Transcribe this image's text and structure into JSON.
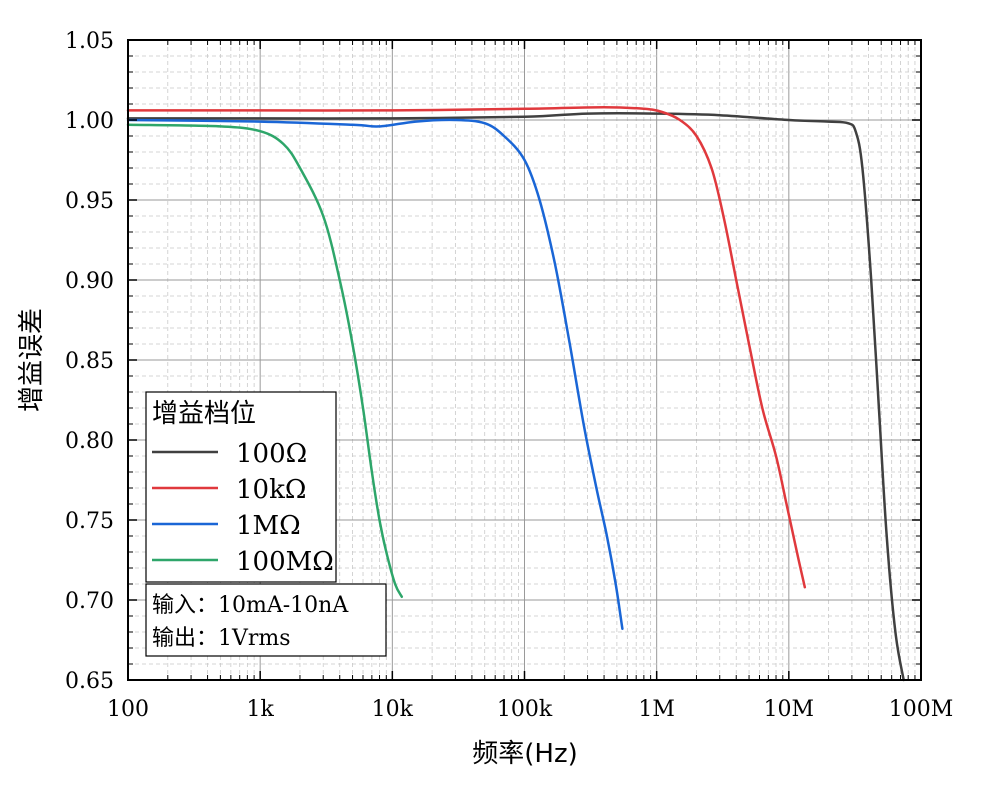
{
  "chart_data": {
    "type": "line",
    "xscale": "log",
    "xlim": [
      100,
      100000000
    ],
    "ylim": [
      0.65,
      1.05
    ],
    "xlabel": "频率(Hz)",
    "ylabel": "增益误差",
    "grid": true,
    "x_tick_labels": [
      "100",
      "1k",
      "10k",
      "100k",
      "1M",
      "10M",
      "100M"
    ],
    "y_tick_labels": [
      "1.05",
      "1.00",
      "0.95",
      "0.90",
      "0.85",
      "0.80",
      "0.75",
      "0.70",
      "0.65"
    ],
    "legend": {
      "title": "增益档位",
      "placement": "lower-left"
    },
    "note": [
      "输入：10mA-10nA",
      "输出：1Vrms"
    ],
    "series": [
      {
        "name": "100Ω",
        "color": "#404040",
        "points": [
          [
            100,
            1.001
          ],
          [
            1000,
            1.001
          ],
          [
            10000,
            1.001
          ],
          [
            100000,
            1.002
          ],
          [
            300000,
            1.004
          ],
          [
            1000000,
            1.004
          ],
          [
            3000000,
            1.003
          ],
          [
            10000000,
            1.0
          ],
          [
            20000000,
            0.999
          ],
          [
            28000000,
            0.998
          ],
          [
            32000000,
            0.993
          ],
          [
            36000000,
            0.97
          ],
          [
            42000000,
            0.9
          ],
          [
            48000000,
            0.82
          ],
          [
            55000000,
            0.74
          ],
          [
            64000000,
            0.68
          ],
          [
            74000000,
            0.65
          ]
        ]
      },
      {
        "name": "10kΩ",
        "color": "#e0393d",
        "points": [
          [
            100,
            1.006
          ],
          [
            1000,
            1.006
          ],
          [
            10000,
            1.006
          ],
          [
            100000,
            1.007
          ],
          [
            400000,
            1.008
          ],
          [
            800000,
            1.007
          ],
          [
            1100000,
            1.005
          ],
          [
            1500000,
            1.0
          ],
          [
            2000000,
            0.99
          ],
          [
            2600000,
            0.97
          ],
          [
            3200000,
            0.94
          ],
          [
            4000000,
            0.9
          ],
          [
            5000000,
            0.86
          ],
          [
            6300000,
            0.82
          ],
          [
            8000000,
            0.79
          ],
          [
            9600000,
            0.76
          ],
          [
            11500000,
            0.73
          ],
          [
            13200000,
            0.708
          ]
        ]
      },
      {
        "name": "1MΩ",
        "color": "#1a66d6",
        "points": [
          [
            100,
            1.0
          ],
          [
            1000,
            0.999
          ],
          [
            5000,
            0.997
          ],
          [
            8000,
            0.996
          ],
          [
            15000,
            0.999
          ],
          [
            30000,
            1.0
          ],
          [
            50000,
            0.998
          ],
          [
            70000,
            0.99
          ],
          [
            100000,
            0.975
          ],
          [
            130000,
            0.95
          ],
          [
            170000,
            0.91
          ],
          [
            220000,
            0.86
          ],
          [
            280000,
            0.81
          ],
          [
            350000,
            0.77
          ],
          [
            420000,
            0.74
          ],
          [
            490000,
            0.71
          ],
          [
            550000,
            0.682
          ]
        ]
      },
      {
        "name": "100MΩ",
        "color": "#2ea66a",
        "points": [
          [
            100,
            0.997
          ],
          [
            500,
            0.996
          ],
          [
            1000,
            0.993
          ],
          [
            1500,
            0.985
          ],
          [
            2000,
            0.97
          ],
          [
            3000,
            0.94
          ],
          [
            4000,
            0.9
          ],
          [
            5000,
            0.86
          ],
          [
            6000,
            0.82
          ],
          [
            7000,
            0.78
          ],
          [
            8000,
            0.75
          ],
          [
            9000,
            0.73
          ],
          [
            10500,
            0.71
          ],
          [
            11800,
            0.702
          ]
        ]
      }
    ]
  }
}
